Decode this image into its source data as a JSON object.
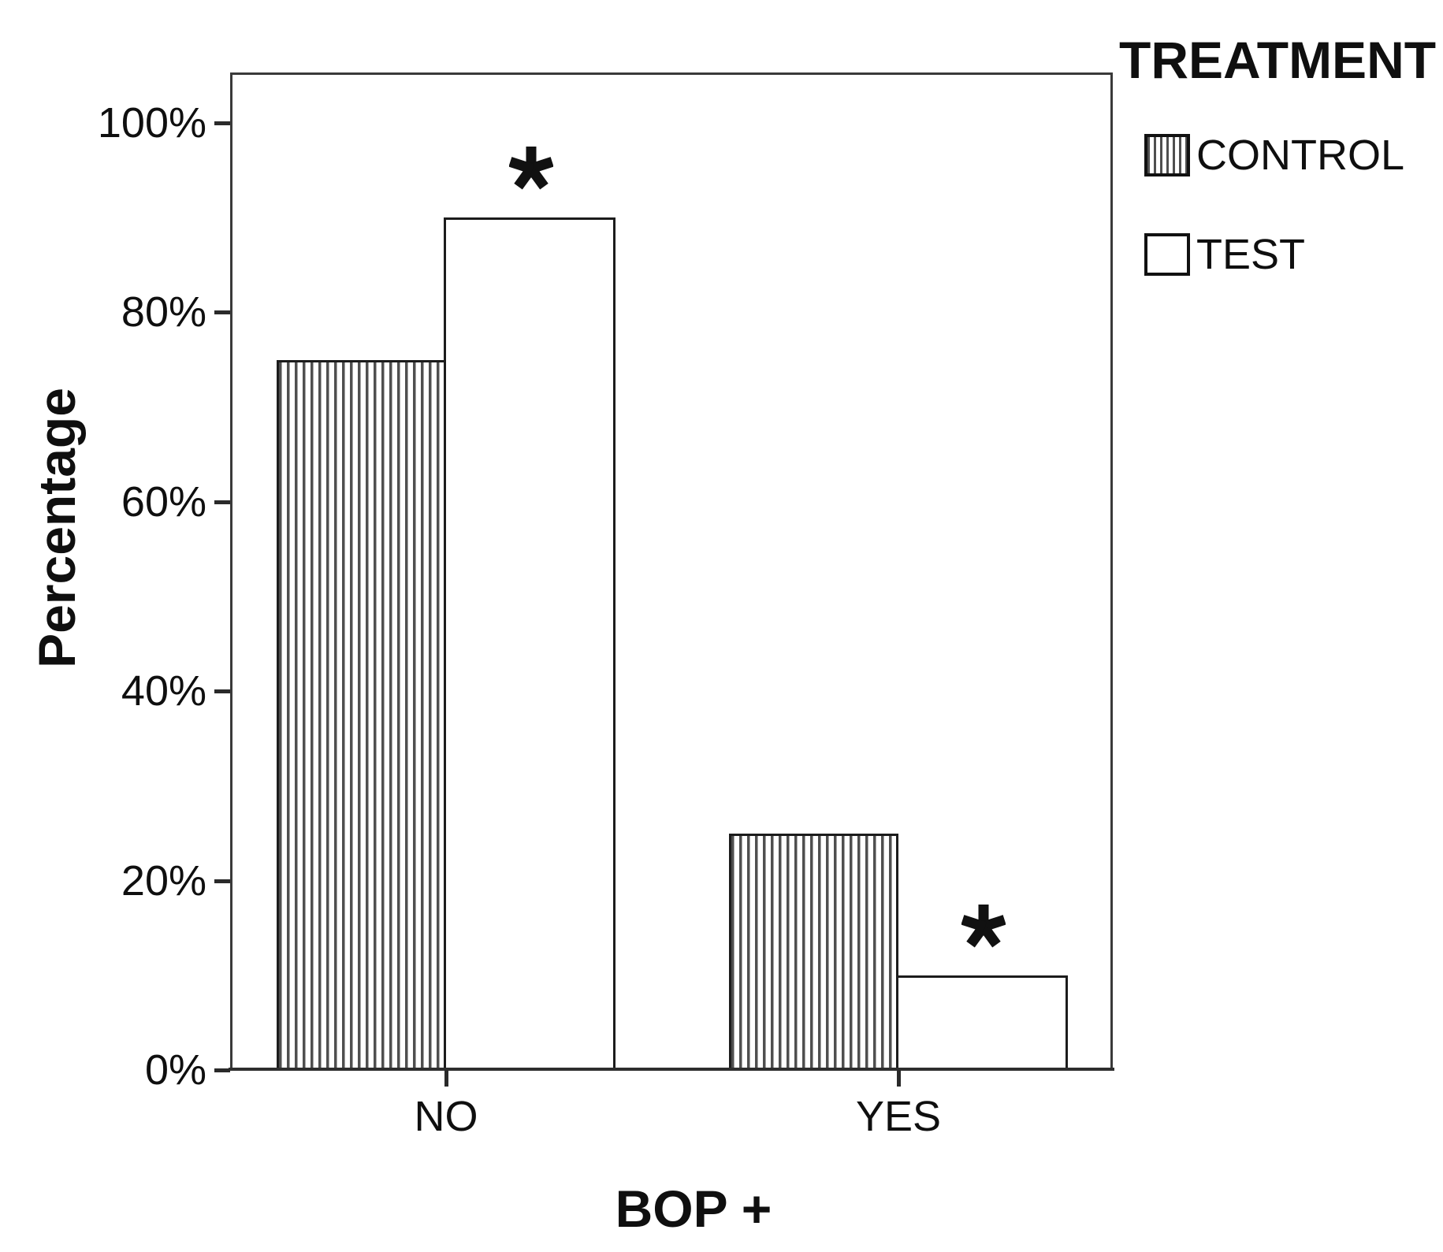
{
  "figure": {
    "background": "#ffffff"
  },
  "chart_data": {
    "type": "bar",
    "title": "",
    "categories": [
      "NO",
      "YES"
    ],
    "series": [
      {
        "name": "CONTROL",
        "style": "vertical-hatch",
        "values": [
          75,
          25
        ]
      },
      {
        "name": "TEST",
        "style": "white",
        "values": [
          90,
          10
        ]
      }
    ],
    "xlabel": "BOP +",
    "ylabel": "Percentage",
    "ylim": [
      0,
      100
    ],
    "ytick_values": [
      0,
      20,
      40,
      60,
      80,
      100
    ],
    "ytick_labels": [
      "0%",
      "20%",
      "40%",
      "60%",
      "80%",
      "100%"
    ],
    "legend_title": "TREATMENT",
    "legend_items": [
      "CONTROL",
      "TEST"
    ],
    "legend_position": "outside-top-right",
    "grid": false,
    "annotations": [
      {
        "text": "*",
        "category": "NO",
        "series": "TEST",
        "position": "above-bar"
      },
      {
        "text": "*",
        "category": "YES",
        "series": "TEST",
        "position": "above-bar"
      }
    ],
    "colors": {
      "foreground": "#000000",
      "background": "#ffffff",
      "bar_fill": "#ffffff",
      "hatch_line": "#4f4f4f"
    }
  }
}
